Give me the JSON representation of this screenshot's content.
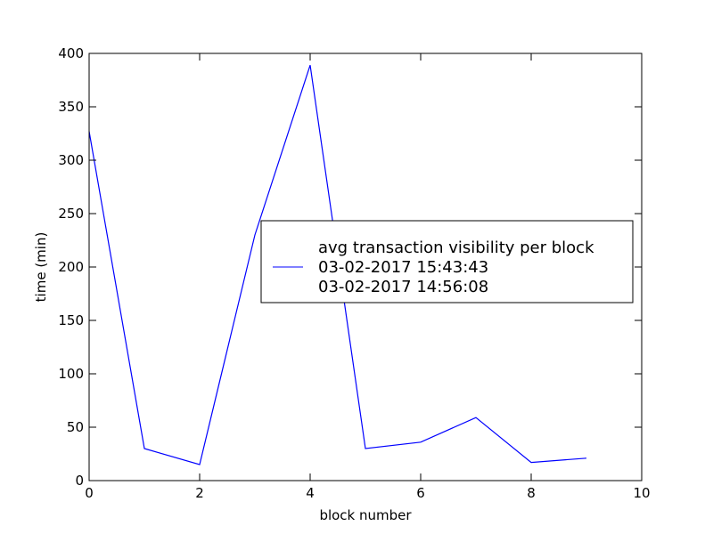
{
  "chart_data": {
    "type": "line",
    "title": "",
    "xlabel": "block number",
    "ylabel": "time (min)",
    "xlim": [
      0,
      10
    ],
    "ylim": [
      0,
      400
    ],
    "xticks": [
      0,
      2,
      4,
      6,
      8,
      10
    ],
    "yticks": [
      0,
      50,
      100,
      150,
      200,
      250,
      300,
      350,
      400
    ],
    "grid": false,
    "legend_position": "center-right",
    "series": [
      {
        "name": "avg transaction visibility per block\n03-02-2017 15:43:43\n03-02-2017 14:56:08",
        "color": "#0000ff",
        "x": [
          0,
          1,
          2,
          3,
          4,
          5,
          6,
          7,
          8,
          9
        ],
        "y": [
          327,
          30,
          15,
          230,
          389,
          30,
          36,
          59,
          17,
          21
        ]
      }
    ]
  }
}
